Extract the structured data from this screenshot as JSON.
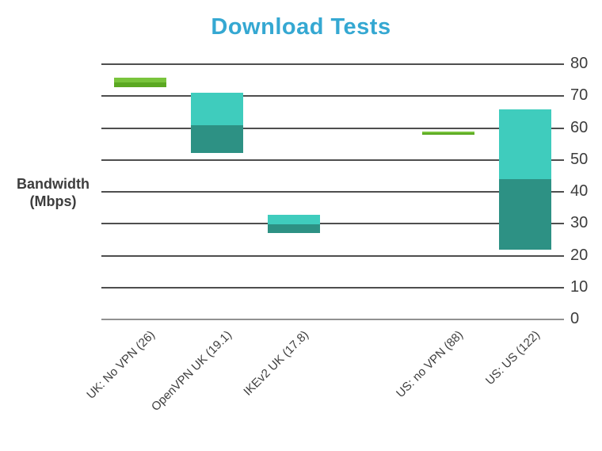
{
  "title": "Download Tests",
  "y_axis_title": {
    "line1": "Bandwidth",
    "line2": "(Mbps)"
  },
  "colors": {
    "title": "#35a8d2",
    "text": "#3d3d3d",
    "gridline": "#4e4e4e",
    "zero_line": "#919191"
  },
  "chart_data": {
    "type": "bar",
    "subtype": "floating-range-bars-two-tone",
    "title": "Download Tests",
    "ylabel": "Bandwidth (Mbps)",
    "xlabel": "",
    "ylim": [
      0,
      80
    ],
    "yticks": [
      0,
      10,
      20,
      30,
      40,
      50,
      60,
      70,
      80
    ],
    "grid": "horizontal",
    "legend": "none",
    "n_slots": 6,
    "empty_slots": [
      3
    ],
    "palettes": {
      "green": {
        "top": "#79c43c",
        "bottom": "#5ba822"
      },
      "teal": {
        "top": "#3fccbd",
        "bottom": "#2d9184"
      }
    },
    "bars": [
      {
        "label": "UK: No VPN (26)",
        "slot": 0,
        "palette": "green",
        "low": 72.7,
        "mid": 74.3,
        "high": 75.9
      },
      {
        "label": "OpenVPN UK (19.1)",
        "slot": 1,
        "palette": "teal",
        "low": 52.1,
        "mid": 60.8,
        "high": 71.0
      },
      {
        "label": "IKEv2 UK (17.8)",
        "slot": 2,
        "palette": "teal",
        "low": 27.0,
        "mid": 29.8,
        "high": 32.8
      },
      {
        "label": "US: no VPN (88)",
        "slot": 4,
        "palette": "green",
        "low": 58.0,
        "mid": 58.4,
        "high": 58.8
      },
      {
        "label": "US: US (122)",
        "slot": 5,
        "palette": "teal",
        "low": 21.8,
        "mid": 43.9,
        "high": 65.8
      }
    ]
  }
}
